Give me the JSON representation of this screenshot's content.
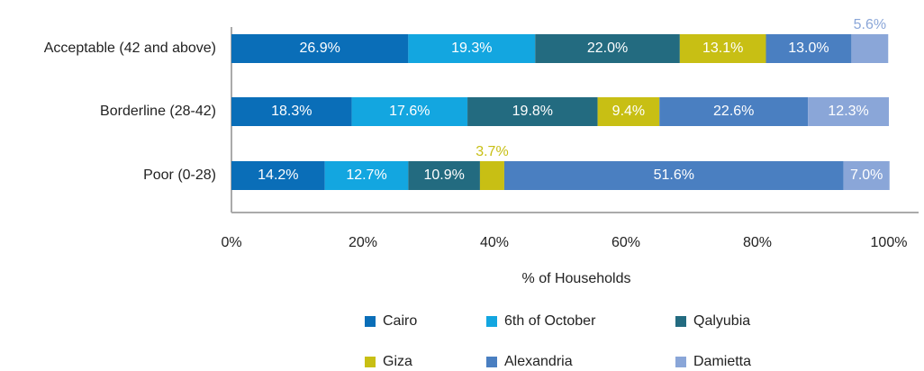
{
  "chart_data": {
    "type": "stacked_bar_horizontal",
    "categories": [
      "Acceptable (42 and above)",
      "Borderline (28-42)",
      "Poor (0-28)"
    ],
    "series": [
      {
        "name": "Cairo",
        "color": "#0a6eb8",
        "values": [
          26.9,
          18.3,
          14.2
        ],
        "value_labels": [
          "26.9%",
          "18.3%",
          "14.2%"
        ]
      },
      {
        "name": "6th of October",
        "color": "#13a6e0",
        "values": [
          19.3,
          17.6,
          12.7
        ],
        "value_labels": [
          "19.3%",
          "17.6%",
          "12.7%"
        ]
      },
      {
        "name": "Qalyubia",
        "color": "#236b80",
        "values": [
          22.0,
          19.8,
          10.9
        ],
        "value_labels": [
          "22.0%",
          "19.8%",
          "10.9%"
        ]
      },
      {
        "name": "Giza",
        "color": "#c8bf14",
        "values": [
          13.1,
          9.4,
          3.7
        ],
        "value_labels": [
          "13.1%",
          "9.4%",
          "3.7%"
        ]
      },
      {
        "name": "Alexandria",
        "color": "#4a7fc1",
        "values": [
          13.0,
          22.6,
          51.6
        ],
        "value_labels": [
          "13.0%",
          "22.6%",
          "51.6%"
        ]
      },
      {
        "name": "Damietta",
        "color": "#8aa6d8",
        "values": [
          5.6,
          12.3,
          7.0
        ],
        "value_labels": [
          "5.6%",
          "12.3%",
          "7.0%"
        ]
      }
    ],
    "xlim": [
      0,
      100
    ],
    "xticks": [
      {
        "value": 0,
        "label": "0%"
      },
      {
        "value": 20,
        "label": "20%"
      },
      {
        "value": 40,
        "label": "40%"
      },
      {
        "value": 60,
        "label": "60%"
      },
      {
        "value": 80,
        "label": "80%"
      },
      {
        "value": 100,
        "label": "100%"
      }
    ],
    "x_label": "% of Households",
    "legend": "bottom"
  }
}
